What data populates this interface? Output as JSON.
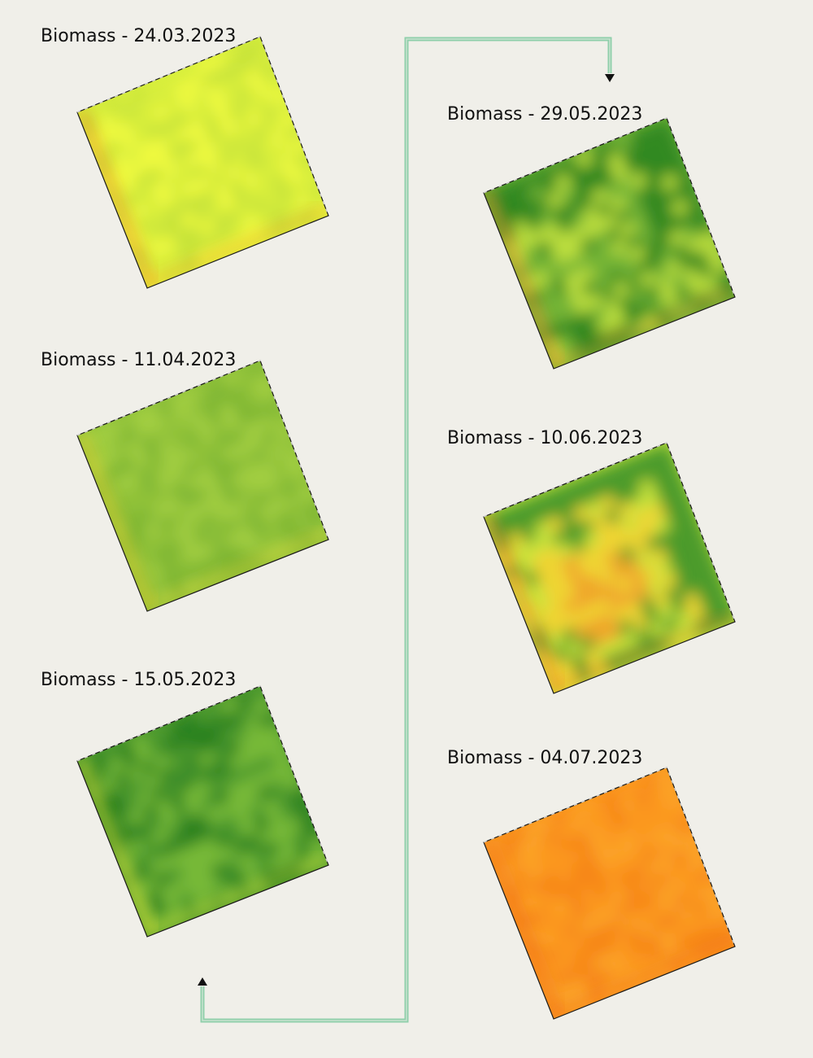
{
  "panels": [
    {
      "title": "Biomass - 24.03.2023",
      "colors": {
        "base": "#d8ef3c",
        "light": "#f2fb3e",
        "dark": "#c4e23a",
        "edge": "#f28b22"
      }
    },
    {
      "title": "Biomass - 11.04.2023",
      "colors": {
        "base": "#90c23a",
        "light": "#a5d042",
        "dark": "#7cb534",
        "edge": "#f2d133"
      }
    },
    {
      "title": "Biomass - 15.05.2023",
      "colors": {
        "base": "#4e9a2e",
        "light": "#7dbd3a",
        "dark": "#267f1c",
        "edge": "#eee536"
      }
    },
    {
      "title": "Biomass - 29.05.2023",
      "colors": {
        "base": "#74b436",
        "light": "#c6e43e",
        "dark": "#2a8420",
        "edge": "#f08a25"
      }
    },
    {
      "title": "Biomass - 10.06.2023",
      "colors": {
        "base": "#c8e43c",
        "light": "#f5d233",
        "dark": "#3d9228",
        "edge": "#f07d22",
        "hot": "#f5a02a"
      }
    },
    {
      "title": "Biomass - 04.07.2023",
      "colors": {
        "base": "#fb981d",
        "light": "#fca52a",
        "dark": "#f78519",
        "edge": "#f06a1e"
      }
    }
  ],
  "connector_color": "#8fcfaa",
  "arrowhead_color": "#111111"
}
